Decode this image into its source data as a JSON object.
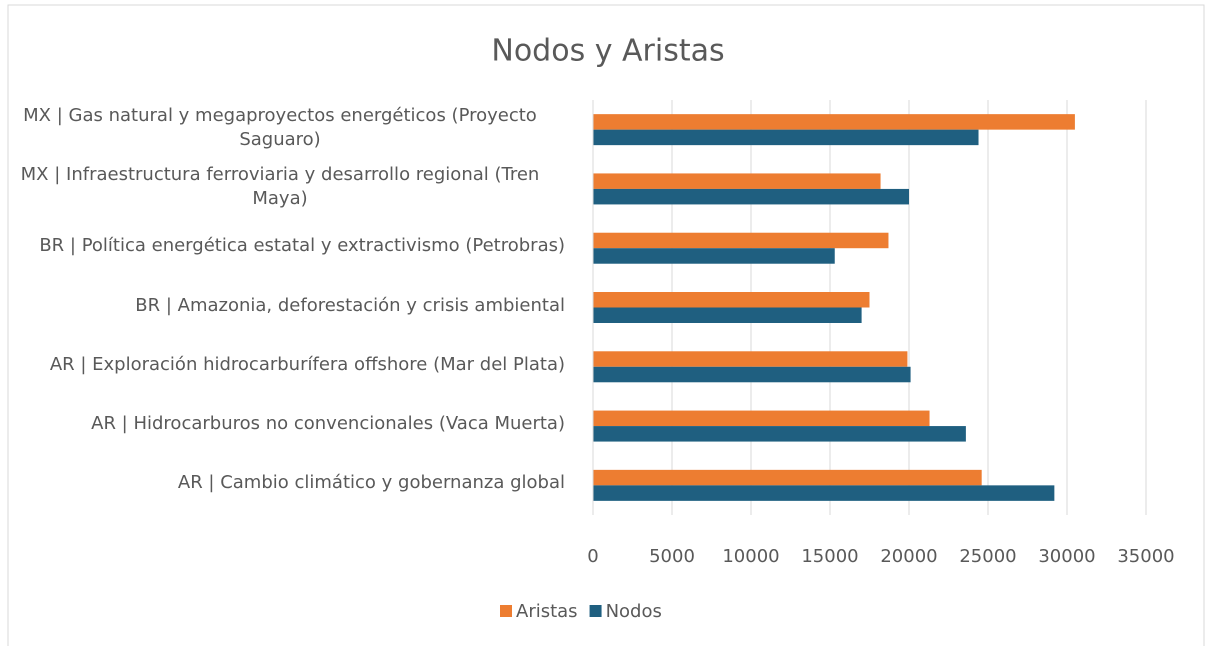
{
  "chart_data": {
    "type": "bar",
    "orientation": "horizontal",
    "title": "Nodos y Aristas",
    "categories": [
      "AR | Cambio climático y gobernanza global",
      "AR | Hidrocarburos no convencionales (Vaca Muerta)",
      "AR | Exploración hidrocarburífera offshore (Mar del Plata)",
      "BR | Amazonia, deforestación y crisis ambiental",
      "BR | Política energética estatal y extractivismo (Petrobras)",
      "MX | Infraestructura ferroviaria y desarrollo regional (Tren Maya)",
      "MX | Gas natural y megaproyectos energéticos (Proyecto Saguaro)"
    ],
    "series": [
      {
        "name": "Aristas",
        "color": "#ed7d31",
        "values": [
          24600,
          21300,
          19900,
          17500,
          18700,
          18200,
          30500
        ]
      },
      {
        "name": "Nodos",
        "color": "#1f5f80",
        "values": [
          29200,
          23600,
          20100,
          17000,
          15300,
          20000,
          24400
        ]
      }
    ],
    "xlim": [
      0,
      35000
    ],
    "xticks": [
      0,
      5000,
      10000,
      15000,
      20000,
      25000,
      30000,
      35000
    ],
    "grid": true,
    "legend": "bottom"
  }
}
